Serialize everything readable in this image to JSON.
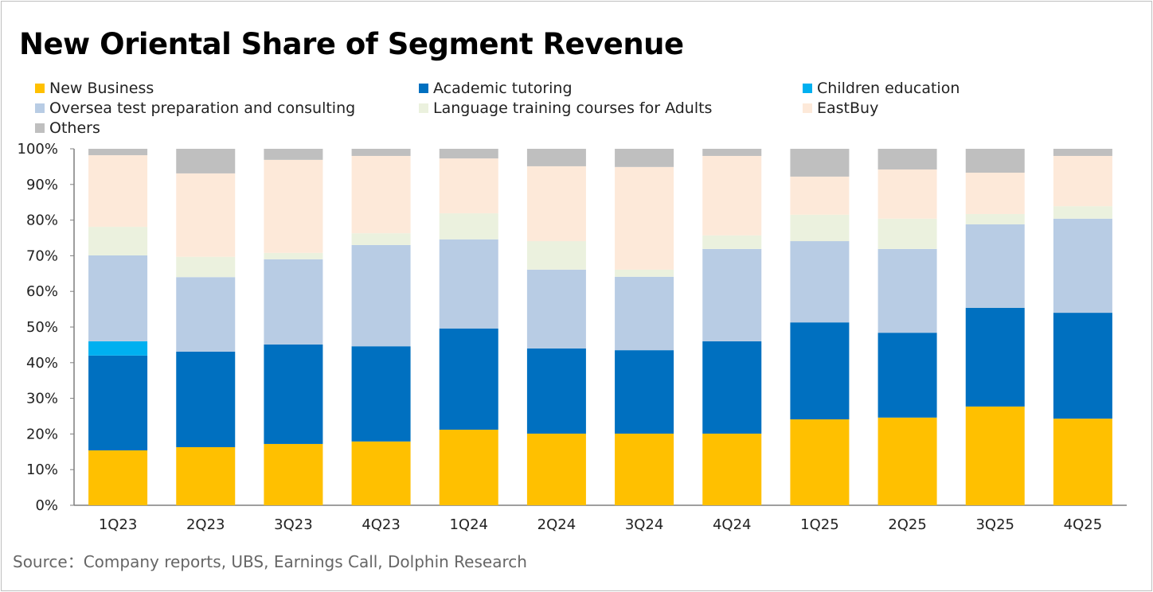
{
  "chart_data": {
    "type": "bar",
    "stacked": true,
    "title": "New Oriental Share of Segment Revenue",
    "categories": [
      "1Q23",
      "2Q23",
      "3Q23",
      "4Q23",
      "1Q24",
      "2Q24",
      "3Q24",
      "4Q24",
      "1Q25",
      "2Q25",
      "3Q25",
      "4Q25"
    ],
    "ylim": [
      0,
      100
    ],
    "yticks": [
      "0%",
      "10%",
      "20%",
      "30%",
      "40%",
      "50%",
      "60%",
      "70%",
      "80%",
      "90%",
      "100%"
    ],
    "grid": false,
    "legend_position": "top",
    "series": [
      {
        "name": "New Business",
        "color": "#FFC000",
        "values": [
          15.4,
          16.3,
          17.2,
          17.9,
          21.2,
          20.1,
          20.1,
          20.1,
          24.1,
          24.6,
          27.7,
          24.3
        ]
      },
      {
        "name": "Academic tutoring",
        "color": "#0070C0",
        "values": [
          26.6,
          26.8,
          27.9,
          26.7,
          28.4,
          23.9,
          23.4,
          25.9,
          27.2,
          23.8,
          27.7,
          29.7
        ]
      },
      {
        "name": "Children education",
        "color": "#00B0F0",
        "values": [
          4.0,
          0,
          0,
          0,
          0,
          0,
          0,
          0,
          0,
          0,
          0,
          0
        ]
      },
      {
        "name": "Oversea test preparation and consulting",
        "color": "#B8CCE4",
        "values": [
          24.1,
          20.9,
          23.9,
          28.4,
          25.0,
          22.1,
          20.6,
          25.9,
          22.8,
          23.5,
          23.4,
          26.4
        ]
      },
      {
        "name": "Language training courses for Adults",
        "color": "#EBF1DE",
        "values": [
          8.0,
          5.7,
          1.8,
          3.3,
          7.3,
          8.0,
          2.0,
          3.8,
          7.4,
          8.5,
          2.9,
          3.5
        ]
      },
      {
        "name": "EastBuy",
        "color": "#FDE9D9",
        "values": [
          20.1,
          23.4,
          26.1,
          21.7,
          15.4,
          21.0,
          28.8,
          22.3,
          10.7,
          13.8,
          11.6,
          14.1
        ]
      },
      {
        "name": "Others",
        "color": "#BFBFBF",
        "values": [
          1.8,
          6.9,
          3.1,
          2.0,
          2.7,
          4.9,
          5.1,
          2.0,
          7.8,
          5.8,
          6.7,
          2.0
        ]
      }
    ]
  },
  "source": "Source：Company reports, UBS, Earnings Call, Dolphin Research"
}
